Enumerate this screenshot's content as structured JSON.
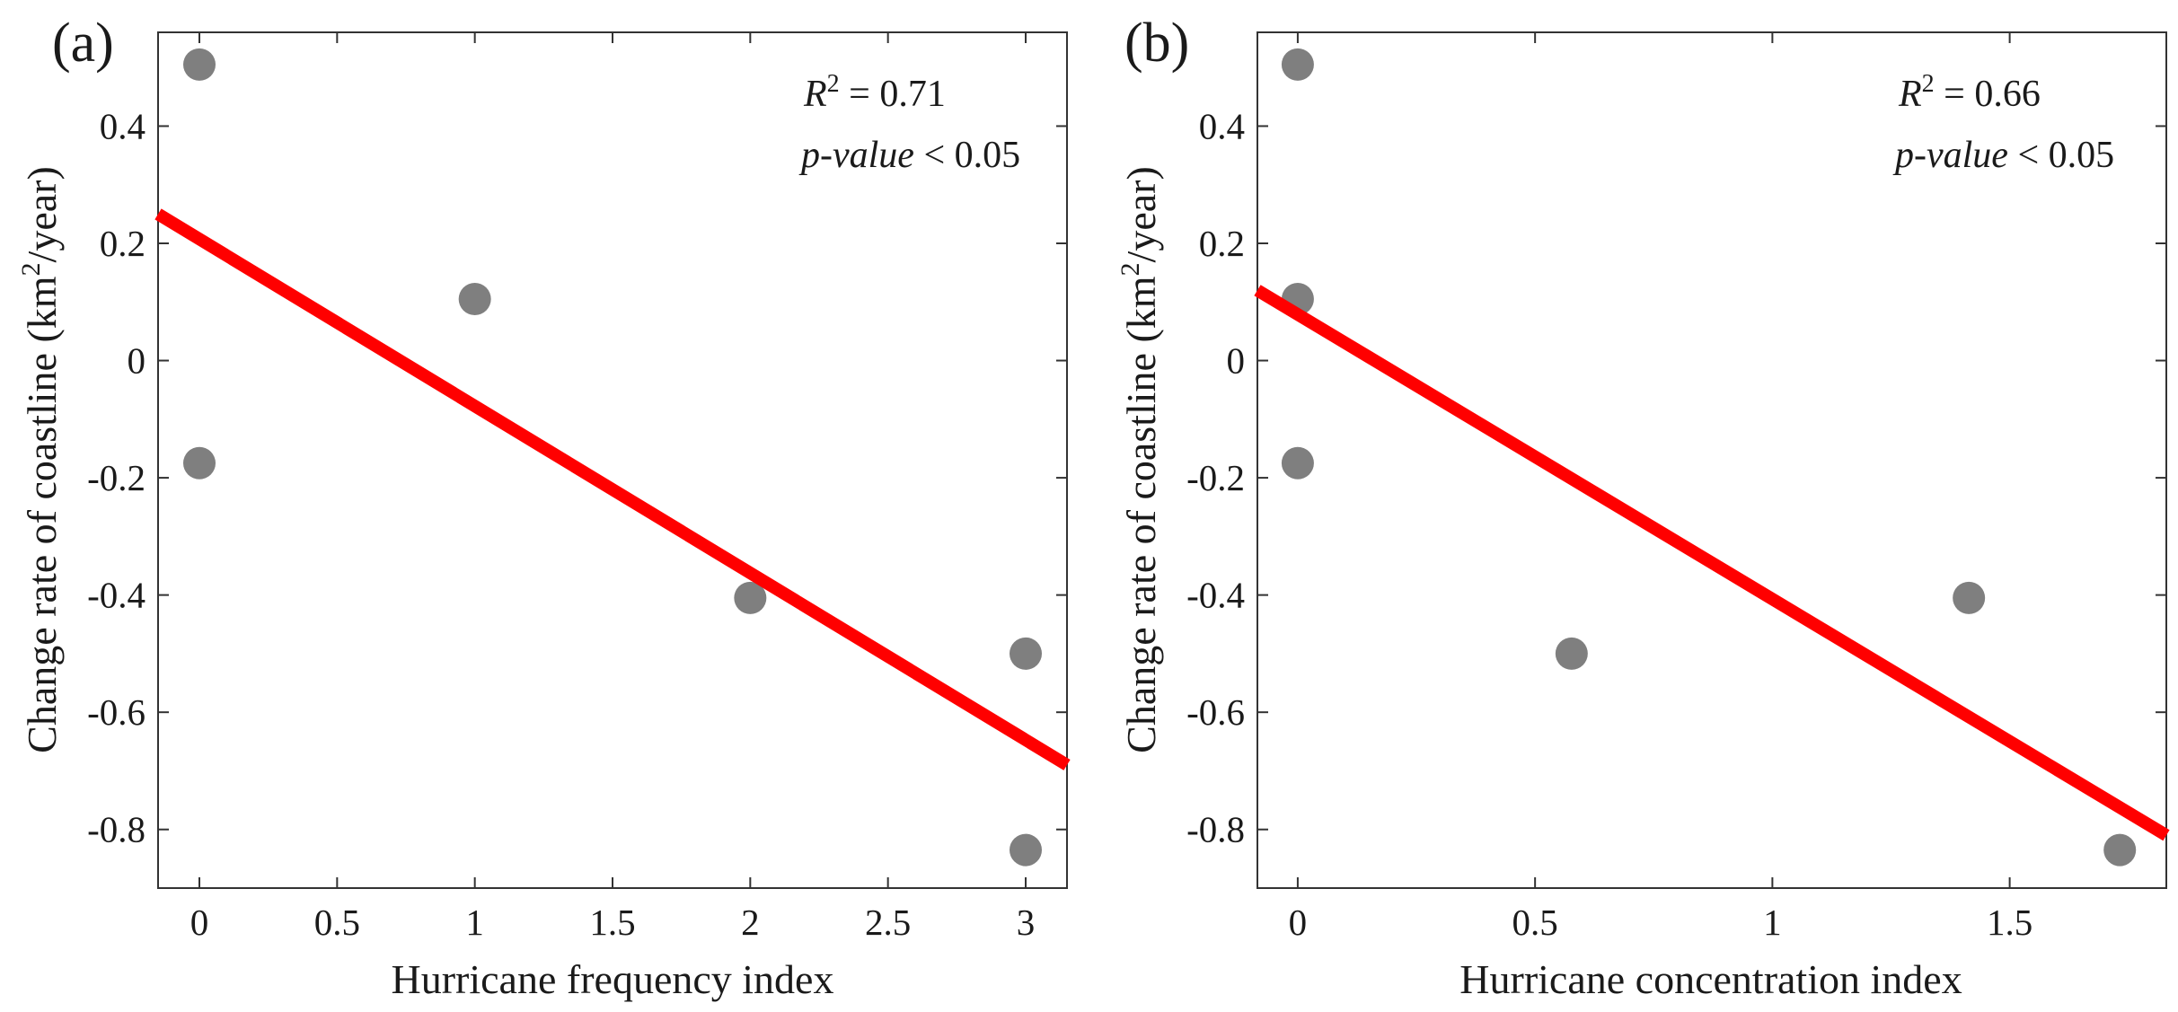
{
  "chart_data": [
    {
      "type": "scatter",
      "panel_label": "(a)",
      "xlabel": "Hurricane frequency index",
      "ylabel_main": "Change rate of coastline (km",
      "ylabel_sup": "2",
      "ylabel_tail": "/year)",
      "xlim": [
        -0.15,
        3.15
      ],
      "ylim": [
        -0.9,
        0.56
      ],
      "xticks": [
        0,
        0.5,
        1,
        1.5,
        2,
        2.5,
        3
      ],
      "xtick_labels": [
        "0",
        "0.5",
        "1",
        "1.5",
        "2",
        "2.5",
        "3"
      ],
      "yticks": [
        0.4,
        0.2,
        0,
        -0.2,
        -0.4,
        -0.6,
        -0.8
      ],
      "ytick_labels": [
        "0.4",
        "0.2",
        "0",
        "-0.2",
        "-0.4",
        "-0.6",
        "-0.8"
      ],
      "points": [
        {
          "x": 0,
          "y": 0.505
        },
        {
          "x": 0,
          "y": -0.175
        },
        {
          "x": 1,
          "y": 0.105
        },
        {
          "x": 2,
          "y": -0.405
        },
        {
          "x": 3,
          "y": -0.5
        },
        {
          "x": 3,
          "y": -0.835
        }
      ],
      "fit_line": {
        "x": [
          -0.15,
          3.15
        ],
        "y": [
          0.25,
          -0.69
        ]
      },
      "stats": {
        "r2_symbol": "R",
        "r2_exp": "2",
        "r2_value": " = 0.71",
        "p_label": "p-value",
        "p_value": " < 0.05"
      },
      "point_color": "#7f7f7f",
      "line_color": "#ff0000"
    },
    {
      "type": "scatter",
      "panel_label": "(b)",
      "xlabel": "Hurricane concentration index",
      "ylabel_main": "Change rate of coastline (km",
      "ylabel_sup": "2",
      "ylabel_tail": "/year)",
      "xlim": [
        -0.085,
        1.83
      ],
      "ylim": [
        -0.9,
        0.56
      ],
      "xticks": [
        0,
        0.5,
        1,
        1.5
      ],
      "xtick_labels": [
        "0",
        "0.5",
        "1",
        "1.5"
      ],
      "yticks": [
        0.4,
        0.2,
        0,
        -0.2,
        -0.4,
        -0.6,
        -0.8
      ],
      "ytick_labels": [
        "0.4",
        "0.2",
        "0",
        "-0.2",
        "-0.4",
        "-0.6",
        "-0.8"
      ],
      "points": [
        {
          "x": 0,
          "y": 0.505
        },
        {
          "x": 0,
          "y": 0.105
        },
        {
          "x": 0,
          "y": -0.175
        },
        {
          "x": 0.577,
          "y": -0.5
        },
        {
          "x": 1.414,
          "y": -0.405
        },
        {
          "x": 1.732,
          "y": -0.835
        }
      ],
      "fit_line": {
        "x": [
          -0.085,
          1.83
        ],
        "y": [
          0.12,
          -0.81
        ]
      },
      "stats": {
        "r2_symbol": "R",
        "r2_exp": "2",
        "r2_value": " = 0.66",
        "p_label": "p-value",
        "p_value": " < 0.05"
      },
      "point_color": "#7f7f7f",
      "line_color": "#ff0000"
    }
  ]
}
